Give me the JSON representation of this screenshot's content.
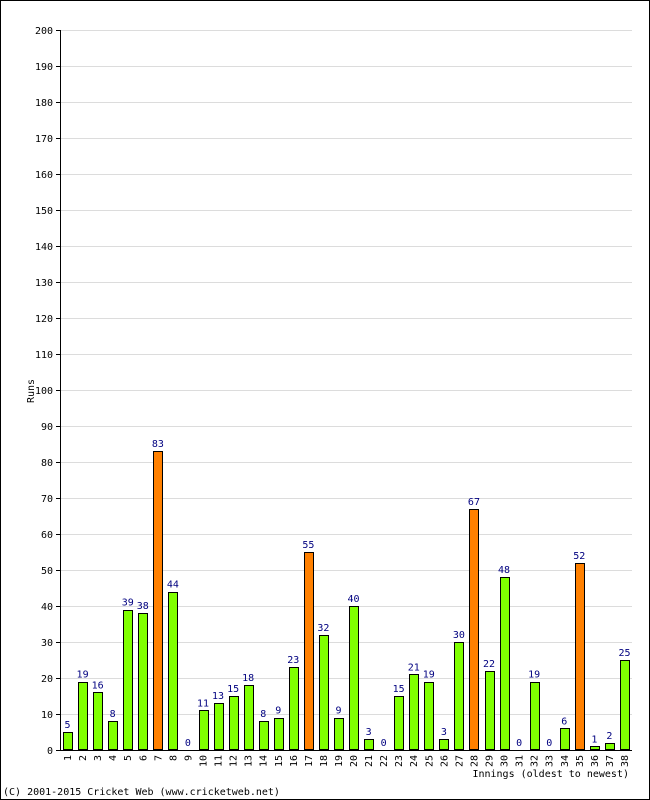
{
  "chart_data": {
    "type": "bar",
    "ylabel": "Runs",
    "xlabel": "Innings (oldest to newest)",
    "ylim": [
      0,
      200
    ],
    "ytick_step": 10,
    "grid": true,
    "categories": [
      "1",
      "2",
      "3",
      "4",
      "5",
      "6",
      "7",
      "8",
      "9",
      "10",
      "11",
      "12",
      "13",
      "14",
      "15",
      "16",
      "17",
      "18",
      "19",
      "20",
      "21",
      "22",
      "23",
      "24",
      "25",
      "26",
      "27",
      "28",
      "29",
      "30",
      "31",
      "32",
      "33",
      "34",
      "35",
      "36",
      "37",
      "38"
    ],
    "values": [
      5,
      19,
      16,
      8,
      39,
      38,
      83,
      44,
      0,
      11,
      13,
      15,
      18,
      8,
      9,
      23,
      55,
      32,
      9,
      40,
      3,
      0,
      15,
      21,
      19,
      3,
      30,
      67,
      22,
      48,
      0,
      19,
      0,
      6,
      52,
      1,
      2,
      25
    ],
    "colors": {
      "normal": "#80ff00",
      "fifty": "#ff8000"
    }
  },
  "footer": {
    "credit": "(C) 2001-2015 Cricket Web (www.cricketweb.net)"
  }
}
